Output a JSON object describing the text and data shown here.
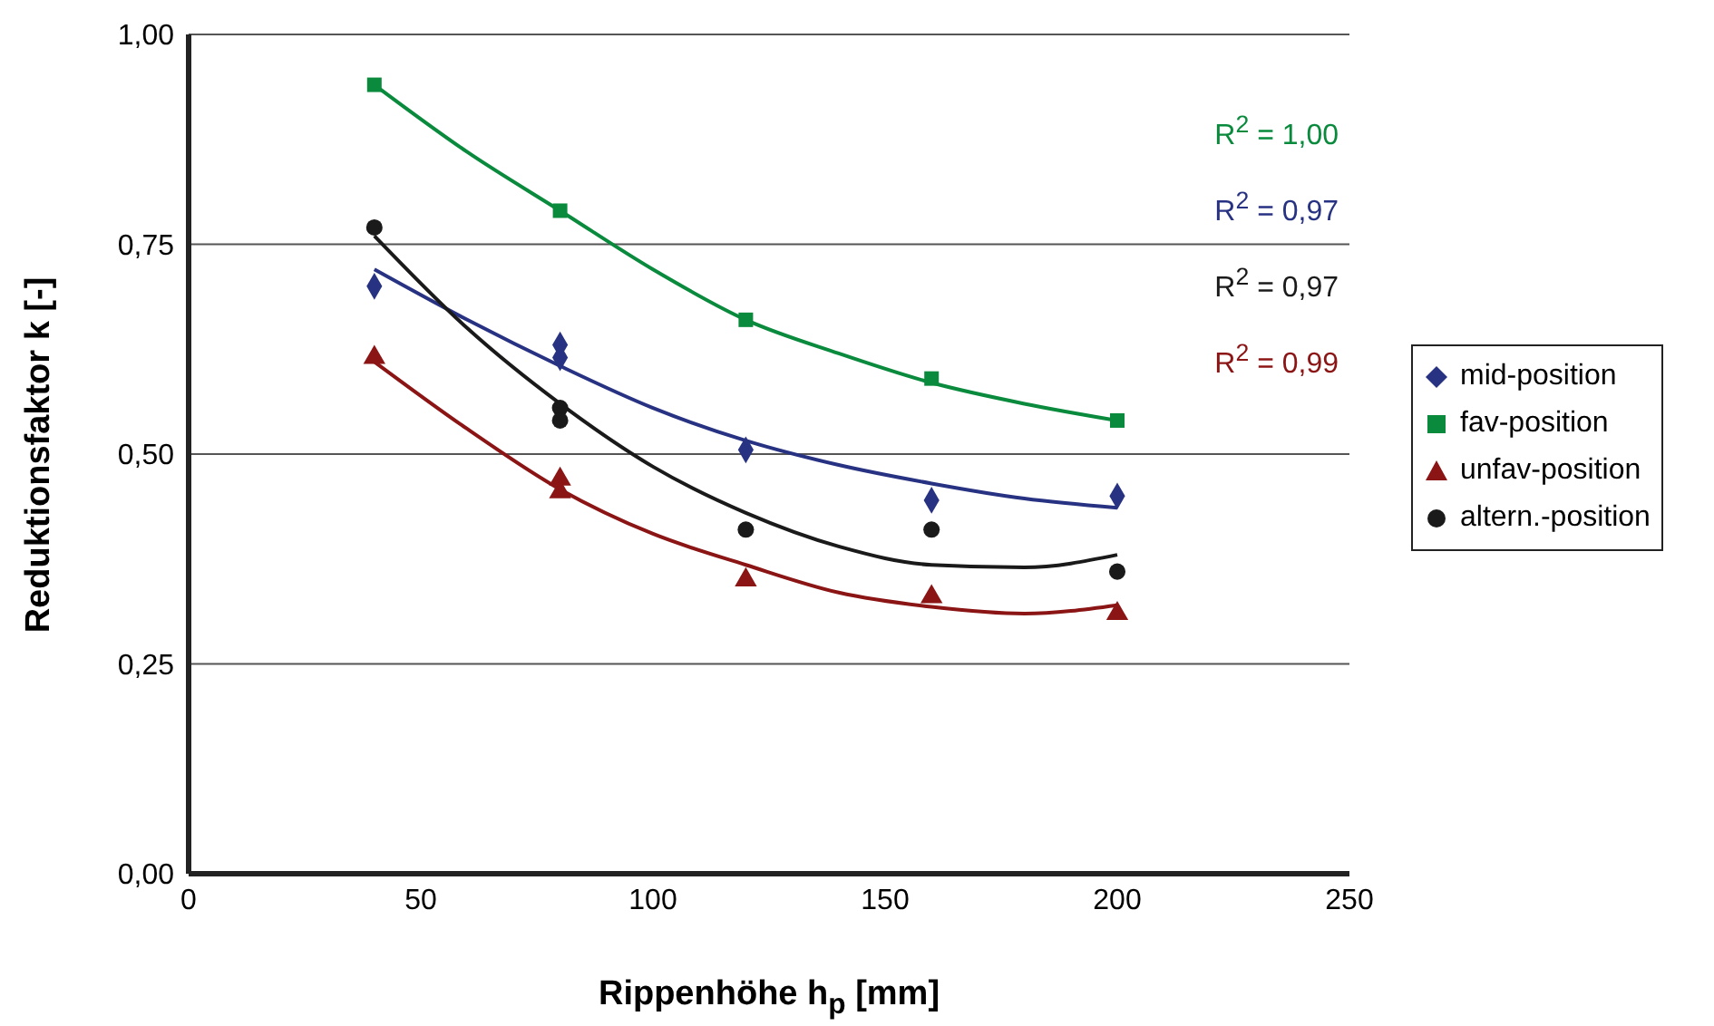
{
  "chart_data": {
    "type": "scatter",
    "xlabel": "Rippenhöhe h$_{p}$ [mm]",
    "ylabel": "Reduktionsfaktor k [-]",
    "xlim": [
      0,
      250
    ],
    "xticks": [
      0,
      50,
      100,
      150,
      200,
      250
    ],
    "ylim": [
      0,
      1
    ],
    "yticks": [
      {
        "value": 0,
        "label": "0,00"
      },
      {
        "value": 0.25,
        "label": "0,25"
      },
      {
        "value": 0.5,
        "label": "0,50"
      },
      {
        "value": 0.75,
        "label": "0,75"
      },
      {
        "value": 1,
        "label": "1,00"
      }
    ],
    "grid": "y",
    "legend": "right",
    "series": [
      {
        "name": "mid-position",
        "color": "#283282",
        "marker": "diamond",
        "x": [
          40,
          80,
          80,
          120,
          160,
          200
        ],
        "values": [
          0.7,
          0.63,
          0.615,
          0.505,
          0.445,
          0.45
        ]
      },
      {
        "name": "fav-position",
        "color": "#0a8a3c",
        "marker": "square",
        "x": [
          40,
          80,
          120,
          160,
          200
        ],
        "values": [
          0.94,
          0.79,
          0.66,
          0.59,
          0.54
        ]
      },
      {
        "name": "unfav-position",
        "color": "#8b1414",
        "marker": "triangle",
        "x": [
          40,
          80,
          80,
          120,
          160,
          200
        ],
        "values": [
          0.615,
          0.47,
          0.455,
          0.35,
          0.33,
          0.31
        ]
      },
      {
        "name": "altern.-position",
        "color": "#1a1a1a",
        "marker": "circle",
        "x": [
          40,
          80,
          80,
          120,
          160,
          200
        ],
        "values": [
          0.77,
          0.555,
          0.54,
          0.41,
          0.41,
          0.36
        ]
      },
      {
        "type": "line",
        "color": "#0a8a3c",
        "marker": "none",
        "x": [
          40,
          60,
          80,
          100,
          120,
          140,
          160,
          180,
          200
        ],
        "values": [
          0.94,
          0.86,
          0.79,
          0.72,
          0.66,
          0.62,
          0.585,
          0.56,
          0.54
        ]
      },
      {
        "type": "line",
        "color": "#283282",
        "marker": "none",
        "x": [
          40,
          60,
          80,
          100,
          120,
          140,
          160,
          180,
          200
        ],
        "values": [
          0.72,
          0.66,
          0.605,
          0.555,
          0.516,
          0.487,
          0.465,
          0.447,
          0.436
        ]
      },
      {
        "type": "line",
        "color": "#1a1a1a",
        "marker": "none",
        "x": [
          40,
          60,
          80,
          100,
          120,
          140,
          160,
          180,
          200
        ],
        "values": [
          0.76,
          0.65,
          0.56,
          0.485,
          0.43,
          0.39,
          0.368,
          0.365,
          0.38
        ]
      },
      {
        "type": "line",
        "color": "#8b1414",
        "marker": "none",
        "x": [
          40,
          60,
          80,
          100,
          120,
          140,
          160,
          180,
          200
        ],
        "values": [
          0.61,
          0.53,
          0.458,
          0.405,
          0.368,
          0.335,
          0.318,
          0.31,
          0.32
        ]
      }
    ],
    "annotations": [
      "R$^{2}$ = 1,00",
      "R$^{2}$ = 0,97",
      "R$^{2}$ = 0,97",
      "R$^{2}$ = 0,99"
    ]
  }
}
